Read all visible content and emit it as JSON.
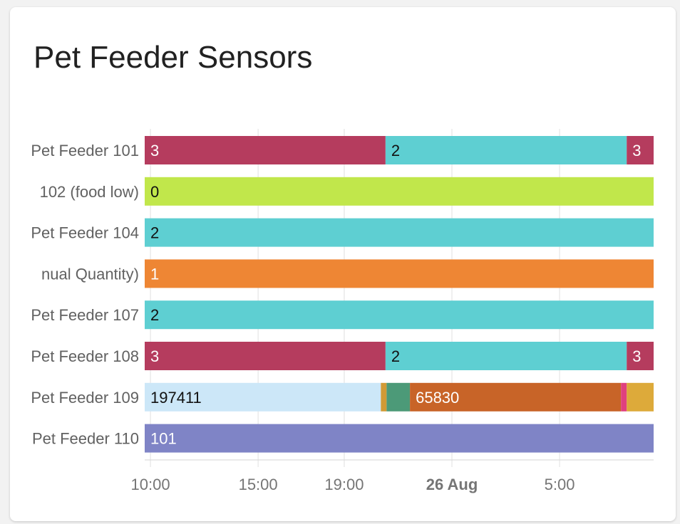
{
  "card": {
    "title": "Pet Feeder Sensors"
  },
  "chart_data": {
    "type": "timeline",
    "title": "Pet Feeder Sensors",
    "x_range": [
      "2023-08-25 09:44",
      "2023-08-26 09:22"
    ],
    "x_ticks": [
      {
        "label": "10:00",
        "time": "2023-08-25 10:00",
        "bold": false
      },
      {
        "label": "15:00",
        "time": "2023-08-25 15:00",
        "bold": false
      },
      {
        "label": "19:00",
        "time": "2023-08-25 19:00",
        "bold": false
      },
      {
        "label": "26 Aug",
        "time": "2023-08-26 00:00",
        "bold": true
      },
      {
        "label": "5:00",
        "time": "2023-08-26 05:00",
        "bold": false
      }
    ],
    "rows": [
      {
        "label": "Pet Feeder 101",
        "segments": [
          {
            "start": "2023-08-25 09:44",
            "end": "2023-08-25 20:55",
            "value": "3",
            "color": "#b53c5e",
            "text_color": "#ffffff"
          },
          {
            "start": "2023-08-25 20:55",
            "end": "2023-08-26 08:07",
            "value": "2",
            "color": "#5ecfd2",
            "text_color": "#111111"
          },
          {
            "start": "2023-08-26 08:07",
            "end": "2023-08-26 09:22",
            "value": "3",
            "color": "#b53c5e",
            "text_color": "#ffffff"
          }
        ]
      },
      {
        "label": "102 (food low)",
        "segments": [
          {
            "start": "2023-08-25 09:44",
            "end": "2023-08-26 09:22",
            "value": "0",
            "color": "#c1e74b",
            "text_color": "#111111"
          }
        ]
      },
      {
        "label": "Pet Feeder 104",
        "segments": [
          {
            "start": "2023-08-25 09:44",
            "end": "2023-08-26 09:22",
            "value": "2",
            "color": "#5ecfd2",
            "text_color": "#111111"
          }
        ]
      },
      {
        "label": "nual Quantity)",
        "segments": [
          {
            "start": "2023-08-25 09:44",
            "end": "2023-08-26 09:22",
            "value": "1",
            "color": "#ee8634",
            "text_color": "#ffffff"
          }
        ]
      },
      {
        "label": "Pet Feeder 107",
        "segments": [
          {
            "start": "2023-08-25 09:44",
            "end": "2023-08-26 09:22",
            "value": "2",
            "color": "#5ecfd2",
            "text_color": "#111111"
          }
        ]
      },
      {
        "label": "Pet Feeder 108",
        "segments": [
          {
            "start": "2023-08-25 09:44",
            "end": "2023-08-25 20:55",
            "value": "3",
            "color": "#b53c5e",
            "text_color": "#ffffff"
          },
          {
            "start": "2023-08-25 20:55",
            "end": "2023-08-26 08:07",
            "value": "2",
            "color": "#5ecfd2",
            "text_color": "#111111"
          },
          {
            "start": "2023-08-26 08:07",
            "end": "2023-08-26 09:22",
            "value": "3",
            "color": "#b53c5e",
            "text_color": "#ffffff"
          }
        ]
      },
      {
        "label": "Pet Feeder 109",
        "segments": [
          {
            "start": "2023-08-25 09:44",
            "end": "2023-08-25 20:42",
            "value": "197411",
            "color": "#cce7f8",
            "text_color": "#111111"
          },
          {
            "start": "2023-08-25 20:42",
            "end": "2023-08-25 20:58",
            "value": "",
            "color": "#d19a35",
            "text_color": "#111111"
          },
          {
            "start": "2023-08-25 20:58",
            "end": "2023-08-25 22:03",
            "value": "",
            "color": "#4c9a78",
            "text_color": "#ffffff"
          },
          {
            "start": "2023-08-25 22:03",
            "end": "2023-08-26 07:51",
            "value": "65830",
            "color": "#c86428",
            "text_color": "#ffffff"
          },
          {
            "start": "2023-08-26 07:51",
            "end": "2023-08-26 08:07",
            "value": "",
            "color": "#e0407e",
            "text_color": "#ffffff"
          },
          {
            "start": "2023-08-26 08:07",
            "end": "2023-08-26 09:22",
            "value": "",
            "color": "#ddaa3a",
            "text_color": "#111111"
          }
        ]
      },
      {
        "label": "Pet Feeder 110",
        "segments": [
          {
            "start": "2023-08-25 09:44",
            "end": "2023-08-26 09:22",
            "value": "101",
            "color": "#7f84c6",
            "text_color": "#ffffff"
          }
        ]
      }
    ],
    "grid": true,
    "legend": "none"
  }
}
